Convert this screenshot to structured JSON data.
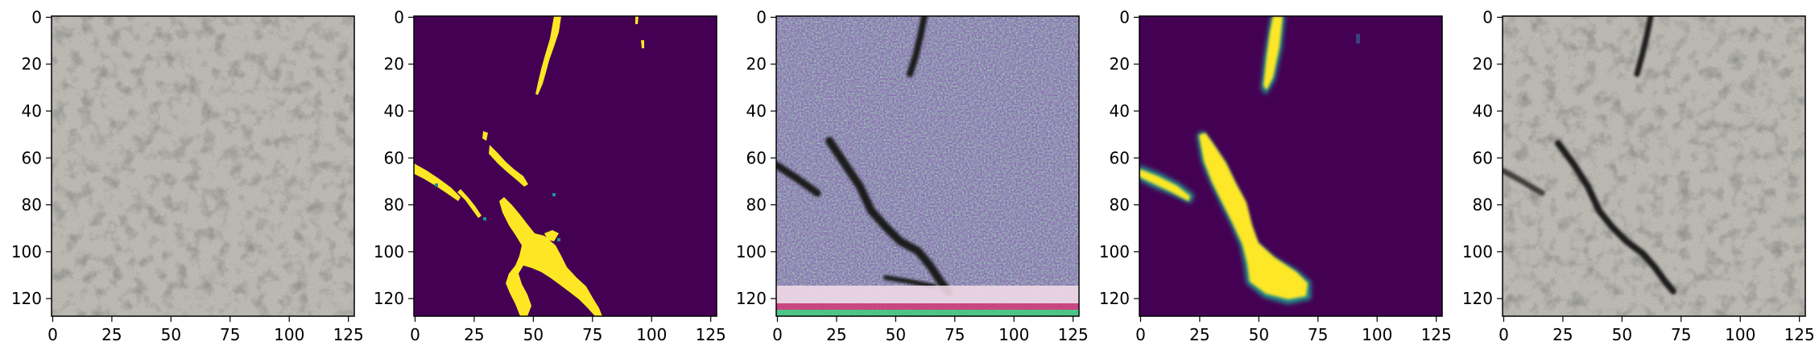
{
  "figure": {
    "panels": [
      {
        "name": "panel-1",
        "kind": "concrete-texture"
      },
      {
        "name": "panel-2",
        "kind": "binary-mask"
      },
      {
        "name": "panel-3",
        "kind": "generated-texture"
      },
      {
        "name": "panel-4",
        "kind": "soft-mask"
      },
      {
        "name": "panel-5",
        "kind": "blended-texture"
      }
    ],
    "axes": {
      "x_ticks": [
        "0",
        "25",
        "50",
        "75",
        "100",
        "125"
      ],
      "y_ticks": [
        "0",
        "20",
        "40",
        "60",
        "80",
        "100",
        "120"
      ]
    },
    "colors": {
      "mask_background": "#440154",
      "mask_foreground": "#fde725",
      "mask_edge": "#21918c",
      "concrete_light": "#c9c6bd",
      "concrete_dark": "#4a4a47"
    }
  }
}
